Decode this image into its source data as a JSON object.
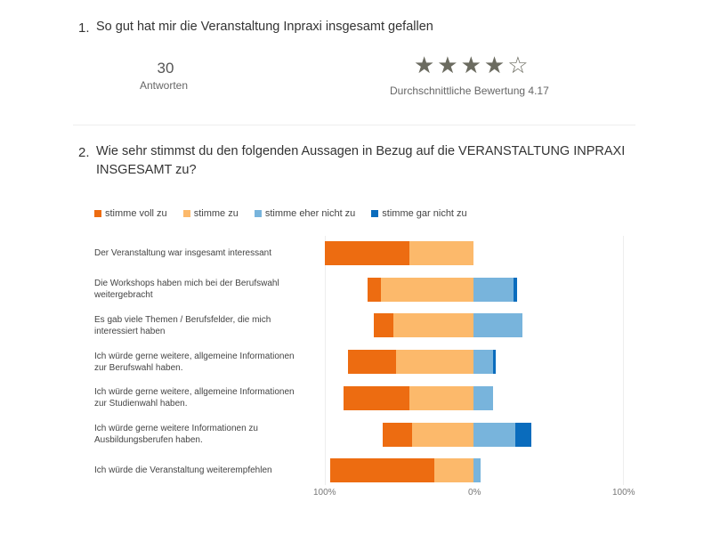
{
  "q1": {
    "number": "1.",
    "title": "So gut hat mir die Veranstaltung Inpraxi insgesamt gefallen",
    "responses_count": "30",
    "responses_label": "Antworten",
    "stars": "★★★★☆",
    "rating_value": 4.17,
    "rating_text": "Durchschnittliche Bewertung 4.17"
  },
  "q2": {
    "number": "2.",
    "title_line1": "Wie sehr stimmst du den folgenden Aussagen in Bezug auf die VERANSTALTUNG INPRAXI",
    "title_line2": "INSGESAMT zu?"
  },
  "chart_data": {
    "type": "bar",
    "subtype": "diverging-stacked-horizontal",
    "legend_position": "top-left",
    "colors": {
      "stimme voll zu": "#ed6c11",
      "stimme zu": "#fcb96b",
      "stimme eher nicht zu": "#78b4dc",
      "stimme gar nicht zu": "#0a6cbd"
    },
    "series_names": [
      "stimme voll zu",
      "stimme zu",
      "stimme eher nicht zu",
      "stimme gar nicht zu"
    ],
    "x_ticks": [
      "100%",
      "0%",
      "100%"
    ],
    "xlim": [
      -100,
      100
    ],
    "categories": [
      "Der Veranstaltung war insgesamt interessant",
      "Die Workshops haben mich bei der Berufswahl weitergebracht",
      "Es gab viele Themen / Berufsfelder, die mich interessiert haben",
      "Ich würde gerne weitere, allgemeine Informationen zur Berufswahl haben.",
      "Ich würde gerne weitere, allgemeine Informationen zur Studienwahl haben.",
      "Ich würde gerne weitere Informationen zu Ausbildungsberufen haben.",
      "Ich würde die Veranstaltung weiterempfehlen"
    ],
    "series": [
      {
        "name": "stimme voll zu",
        "values": [
          57,
          9,
          13,
          32,
          44,
          20,
          70
        ]
      },
      {
        "name": "stimme zu",
        "values": [
          43,
          62,
          54,
          52,
          43,
          41,
          26
        ]
      },
      {
        "name": "stimme eher nicht zu",
        "values": [
          0,
          27,
          33,
          13,
          13,
          28,
          5
        ]
      },
      {
        "name": "stimme gar nicht zu",
        "values": [
          0,
          2,
          0,
          2,
          0,
          11,
          0
        ]
      }
    ]
  }
}
